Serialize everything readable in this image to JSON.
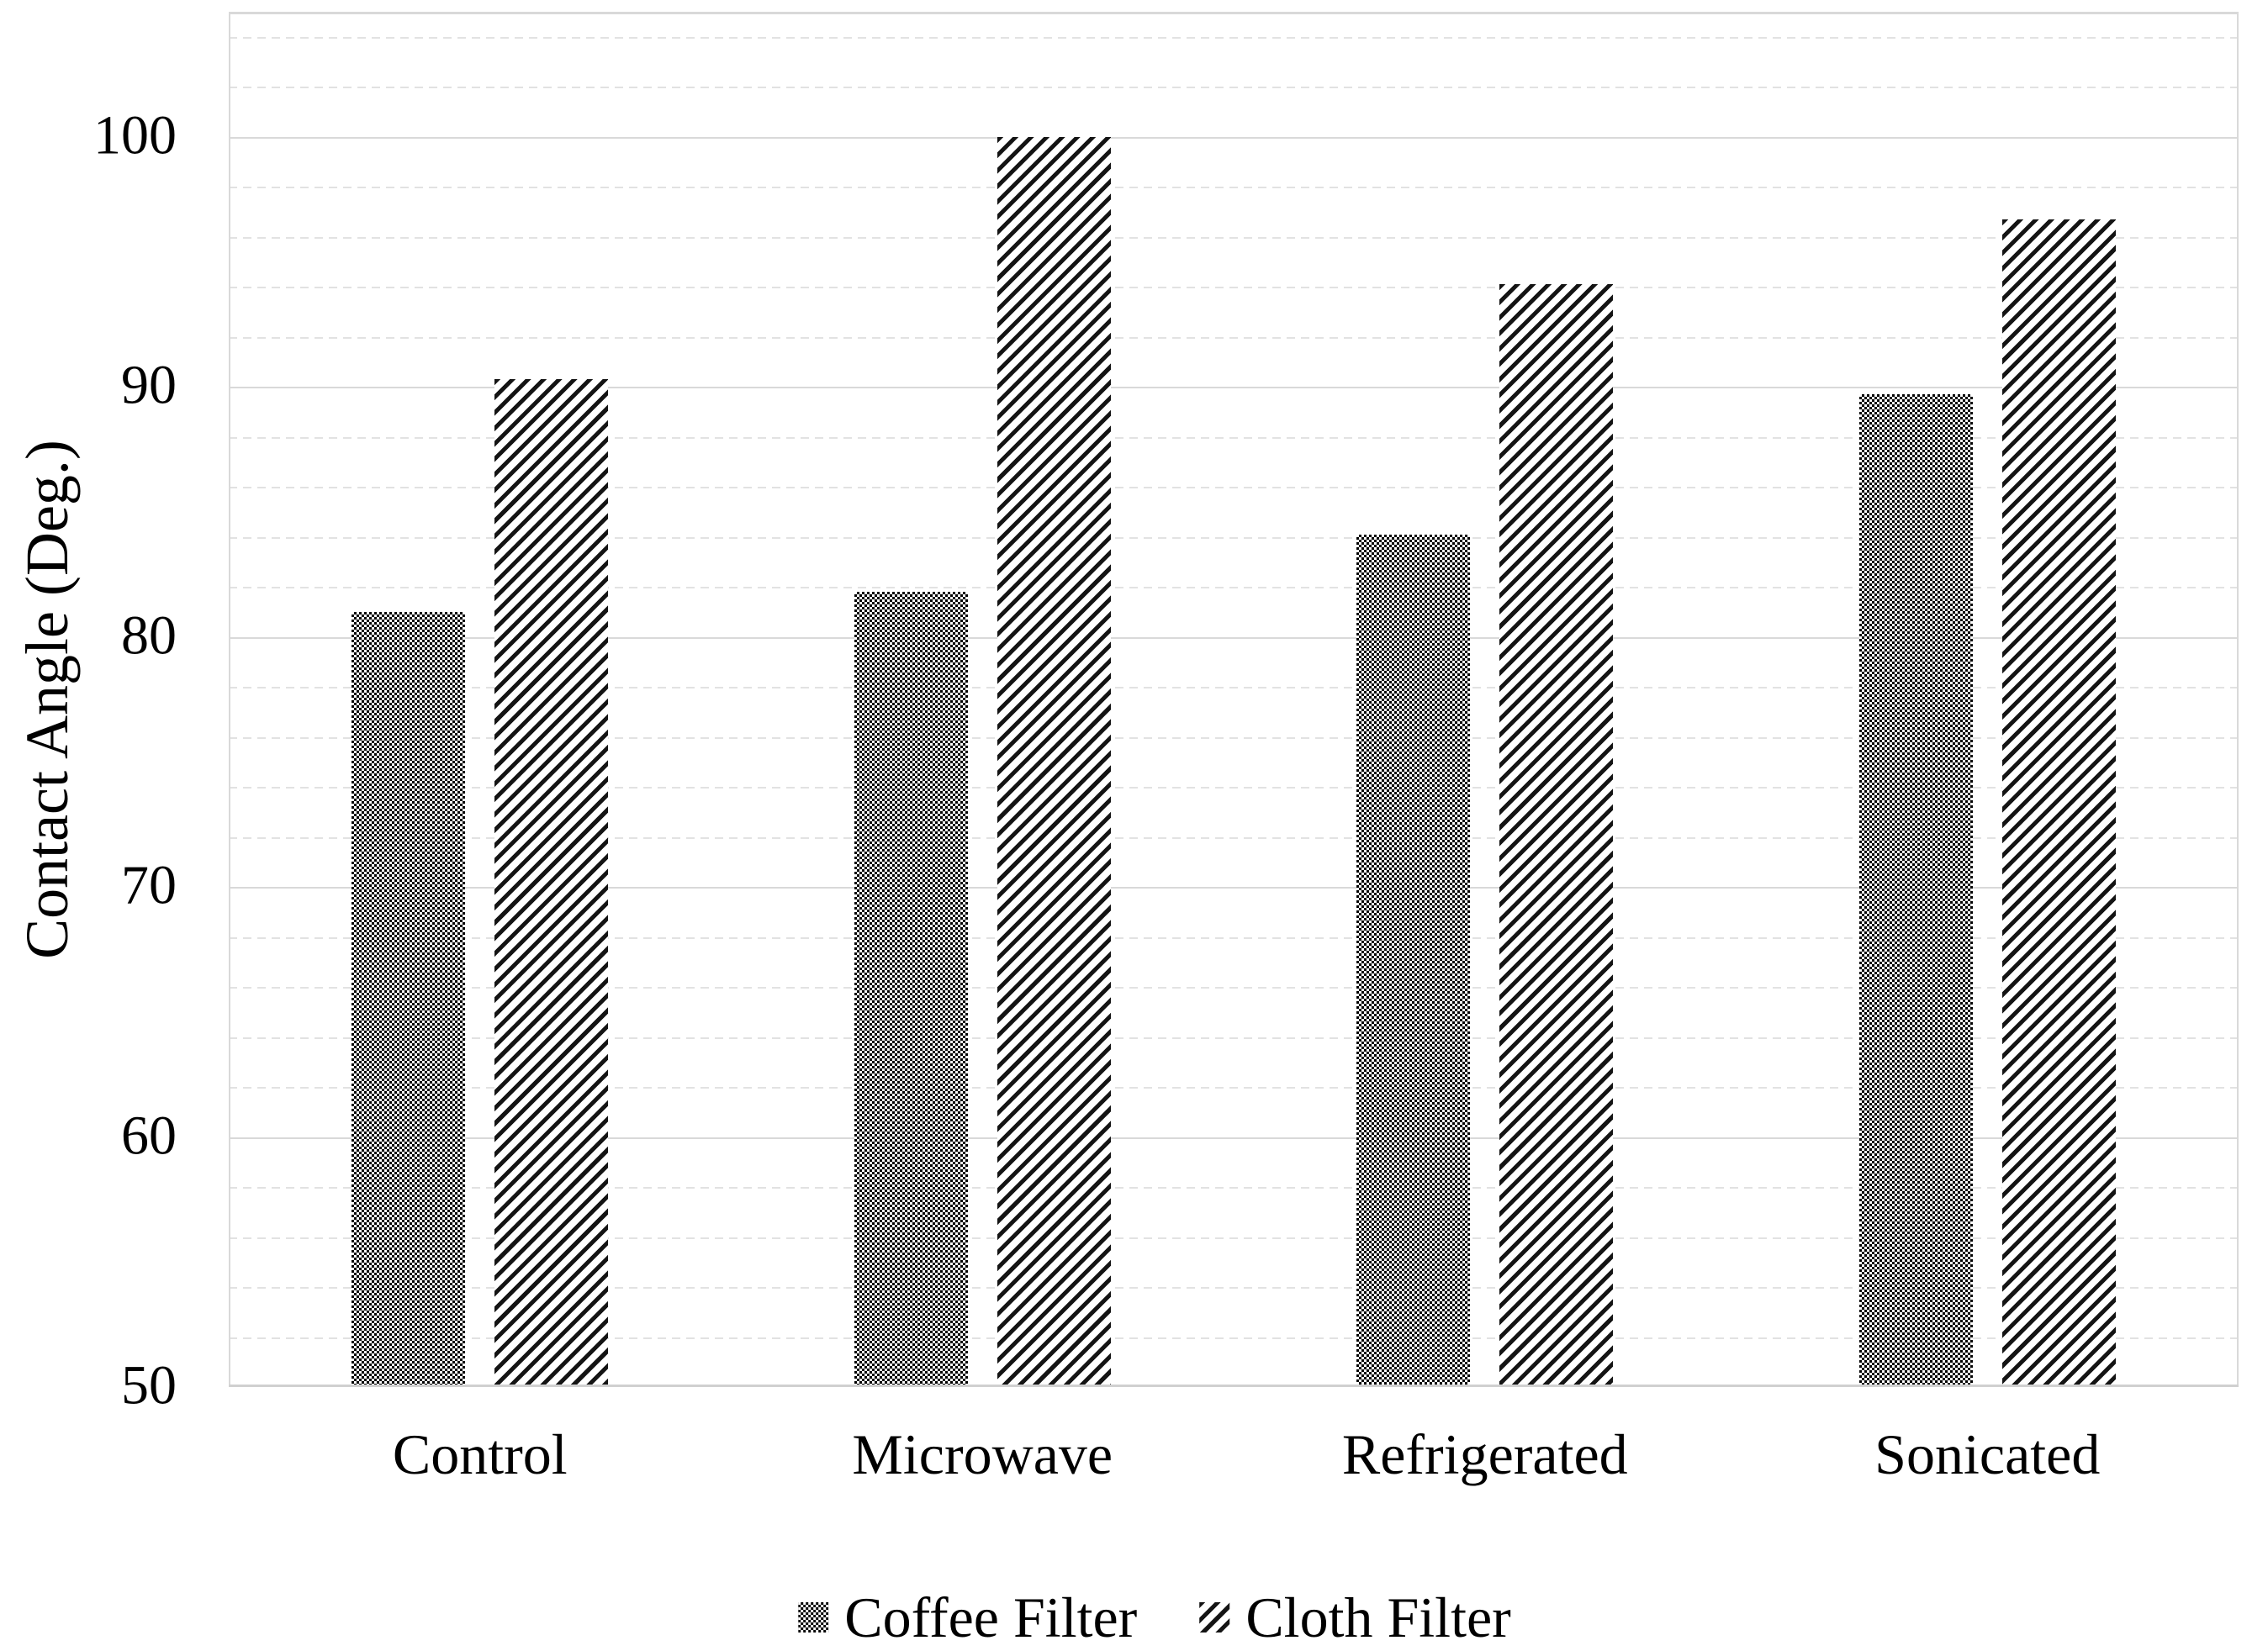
{
  "figure": {
    "background": "#ffffff",
    "text_color": "#000000",
    "gridline_color": "#d9d9d9",
    "axis_line_color": "#d0d0d0"
  },
  "chart_data": {
    "type": "bar",
    "title": "",
    "xlabel": "",
    "ylabel": "Contact Angle (Deg.)",
    "categories": [
      "Control",
      "Microwave",
      "Refrigerated",
      "Sonicated"
    ],
    "series": [
      {
        "name": "Coffee Filter",
        "pattern": "checkerboard-gray",
        "values": [
          81.0,
          81.8,
          84.1,
          89.7
        ]
      },
      {
        "name": "Cloth Filter",
        "pattern": "diagonal-stripes-up",
        "values": [
          90.3,
          100.0,
          94.1,
          96.7
        ]
      }
    ],
    "ylim": [
      50,
      105
    ],
    "yticks": [
      50,
      60,
      70,
      80,
      90,
      100
    ],
    "major_unit": 10,
    "minor_unit": 2,
    "grid": {
      "major": true,
      "minor": true
    },
    "legend_position": "bottom"
  }
}
